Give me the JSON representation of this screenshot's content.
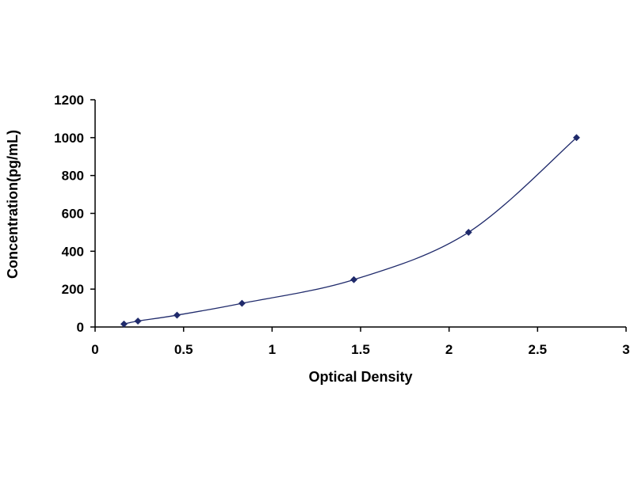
{
  "chart_data": {
    "type": "scatter",
    "title": "",
    "xlabel": "Optical Density",
    "ylabel": "Concentration(pg/mL)",
    "xlim": [
      0,
      3
    ],
    "ylim": [
      0,
      1200
    ],
    "x_ticks": [
      "0",
      "0.5",
      "1",
      "1.5",
      "2",
      "2.5",
      "3"
    ],
    "y_ticks": [
      "0",
      "200",
      "400",
      "600",
      "800",
      "1000",
      "1200"
    ],
    "grid": false,
    "legend": "none",
    "trendline": "smooth curve through points",
    "series": [
      {
        "x": [
          0.163,
          0.242,
          0.463,
          0.83,
          1.462,
          2.11,
          2.72
        ],
        "y": [
          15.6,
          31.2,
          62.5,
          125,
          250,
          500,
          1000
        ]
      }
    ],
    "colors": {
      "marker": "#1f2a6b",
      "line": "#1f2a6b",
      "axis": "#000000"
    }
  }
}
